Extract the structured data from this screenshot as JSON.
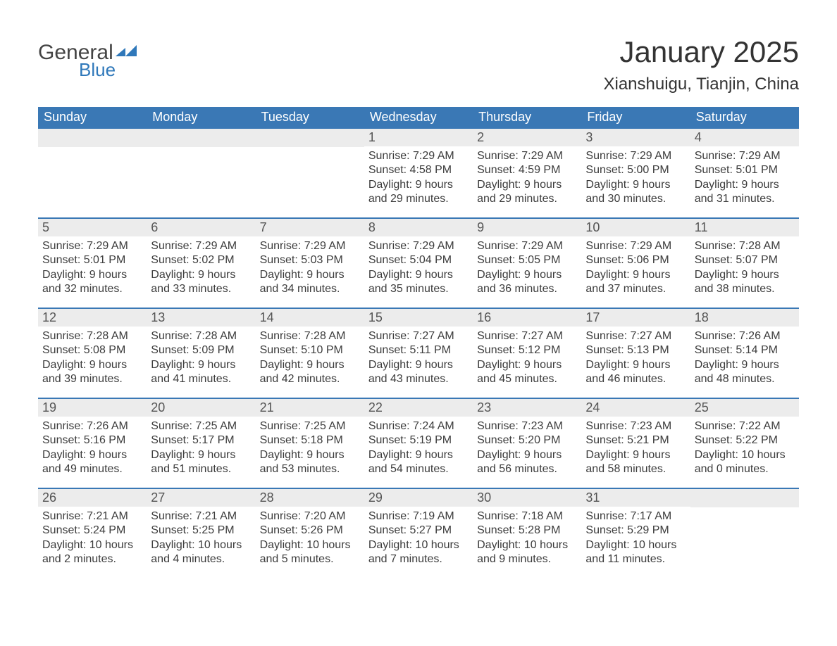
{
  "logo": {
    "text1": "General",
    "text2": "Blue",
    "color_gray": "#444444",
    "color_blue": "#2f78ba"
  },
  "title": "January 2025",
  "subtitle": "Xianshuigu, Tianjin, China",
  "colors": {
    "header_bg": "#3a78b5",
    "header_text": "#ffffff",
    "daynum_bg": "#ececec",
    "row_border": "#3a78b5",
    "body_text": "#3c3c3c",
    "page_bg": "#ffffff"
  },
  "fonts": {
    "title_size": 42,
    "subtitle_size": 24,
    "header_size": 18,
    "daynum_size": 18,
    "body_size": 16
  },
  "day_headers": [
    "Sunday",
    "Monday",
    "Tuesday",
    "Wednesday",
    "Thursday",
    "Friday",
    "Saturday"
  ],
  "weeks": [
    [
      null,
      null,
      null,
      {
        "n": "1",
        "sunrise": "7:29 AM",
        "sunset": "4:58 PM",
        "daylight": "9 hours and 29 minutes."
      },
      {
        "n": "2",
        "sunrise": "7:29 AM",
        "sunset": "4:59 PM",
        "daylight": "9 hours and 29 minutes."
      },
      {
        "n": "3",
        "sunrise": "7:29 AM",
        "sunset": "5:00 PM",
        "daylight": "9 hours and 30 minutes."
      },
      {
        "n": "4",
        "sunrise": "7:29 AM",
        "sunset": "5:01 PM",
        "daylight": "9 hours and 31 minutes."
      }
    ],
    [
      {
        "n": "5",
        "sunrise": "7:29 AM",
        "sunset": "5:01 PM",
        "daylight": "9 hours and 32 minutes."
      },
      {
        "n": "6",
        "sunrise": "7:29 AM",
        "sunset": "5:02 PM",
        "daylight": "9 hours and 33 minutes."
      },
      {
        "n": "7",
        "sunrise": "7:29 AM",
        "sunset": "5:03 PM",
        "daylight": "9 hours and 34 minutes."
      },
      {
        "n": "8",
        "sunrise": "7:29 AM",
        "sunset": "5:04 PM",
        "daylight": "9 hours and 35 minutes."
      },
      {
        "n": "9",
        "sunrise": "7:29 AM",
        "sunset": "5:05 PM",
        "daylight": "9 hours and 36 minutes."
      },
      {
        "n": "10",
        "sunrise": "7:29 AM",
        "sunset": "5:06 PM",
        "daylight": "9 hours and 37 minutes."
      },
      {
        "n": "11",
        "sunrise": "7:28 AM",
        "sunset": "5:07 PM",
        "daylight": "9 hours and 38 minutes."
      }
    ],
    [
      {
        "n": "12",
        "sunrise": "7:28 AM",
        "sunset": "5:08 PM",
        "daylight": "9 hours and 39 minutes."
      },
      {
        "n": "13",
        "sunrise": "7:28 AM",
        "sunset": "5:09 PM",
        "daylight": "9 hours and 41 minutes."
      },
      {
        "n": "14",
        "sunrise": "7:28 AM",
        "sunset": "5:10 PM",
        "daylight": "9 hours and 42 minutes."
      },
      {
        "n": "15",
        "sunrise": "7:27 AM",
        "sunset": "5:11 PM",
        "daylight": "9 hours and 43 minutes."
      },
      {
        "n": "16",
        "sunrise": "7:27 AM",
        "sunset": "5:12 PM",
        "daylight": "9 hours and 45 minutes."
      },
      {
        "n": "17",
        "sunrise": "7:27 AM",
        "sunset": "5:13 PM",
        "daylight": "9 hours and 46 minutes."
      },
      {
        "n": "18",
        "sunrise": "7:26 AM",
        "sunset": "5:14 PM",
        "daylight": "9 hours and 48 minutes."
      }
    ],
    [
      {
        "n": "19",
        "sunrise": "7:26 AM",
        "sunset": "5:16 PM",
        "daylight": "9 hours and 49 minutes."
      },
      {
        "n": "20",
        "sunrise": "7:25 AM",
        "sunset": "5:17 PM",
        "daylight": "9 hours and 51 minutes."
      },
      {
        "n": "21",
        "sunrise": "7:25 AM",
        "sunset": "5:18 PM",
        "daylight": "9 hours and 53 minutes."
      },
      {
        "n": "22",
        "sunrise": "7:24 AM",
        "sunset": "5:19 PM",
        "daylight": "9 hours and 54 minutes."
      },
      {
        "n": "23",
        "sunrise": "7:23 AM",
        "sunset": "5:20 PM",
        "daylight": "9 hours and 56 minutes."
      },
      {
        "n": "24",
        "sunrise": "7:23 AM",
        "sunset": "5:21 PM",
        "daylight": "9 hours and 58 minutes."
      },
      {
        "n": "25",
        "sunrise": "7:22 AM",
        "sunset": "5:22 PM",
        "daylight": "10 hours and 0 minutes."
      }
    ],
    [
      {
        "n": "26",
        "sunrise": "7:21 AM",
        "sunset": "5:24 PM",
        "daylight": "10 hours and 2 minutes."
      },
      {
        "n": "27",
        "sunrise": "7:21 AM",
        "sunset": "5:25 PM",
        "daylight": "10 hours and 4 minutes."
      },
      {
        "n": "28",
        "sunrise": "7:20 AM",
        "sunset": "5:26 PM",
        "daylight": "10 hours and 5 minutes."
      },
      {
        "n": "29",
        "sunrise": "7:19 AM",
        "sunset": "5:27 PM",
        "daylight": "10 hours and 7 minutes."
      },
      {
        "n": "30",
        "sunrise": "7:18 AM",
        "sunset": "5:28 PM",
        "daylight": "10 hours and 9 minutes."
      },
      {
        "n": "31",
        "sunrise": "7:17 AM",
        "sunset": "5:29 PM",
        "daylight": "10 hours and 11 minutes."
      },
      null
    ]
  ],
  "labels": {
    "sunrise": "Sunrise: ",
    "sunset": "Sunset: ",
    "daylight": "Daylight: "
  }
}
